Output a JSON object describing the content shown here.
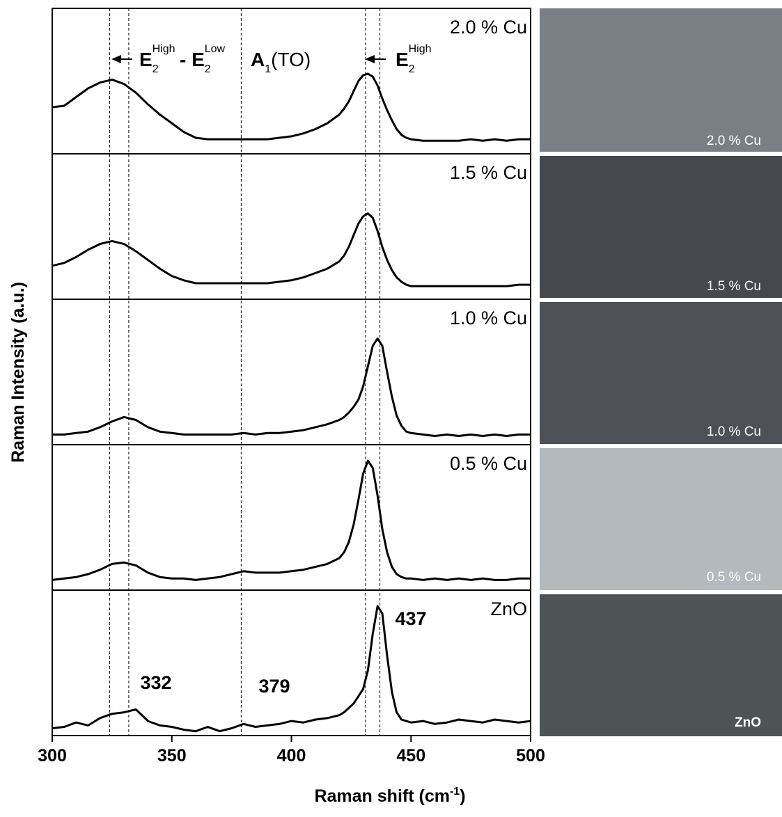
{
  "chart_data": {
    "type": "line",
    "ylabel": "Raman Intensity (a.u.)",
    "xlabel": {
      "text": "Raman shift (cm",
      "sup": "-1",
      "tail": ")"
    },
    "x": [
      300,
      305,
      310,
      315,
      320,
      325,
      330,
      335,
      340,
      345,
      350,
      355,
      360,
      365,
      370,
      375,
      380,
      385,
      390,
      395,
      400,
      405,
      410,
      415,
      420,
      422,
      424,
      426,
      428,
      430,
      432,
      434,
      436,
      438,
      440,
      442,
      444,
      446,
      448,
      450,
      455,
      460,
      465,
      470,
      475,
      480,
      485,
      490,
      495,
      500
    ],
    "xlim": [
      300,
      500
    ],
    "xticks": [
      300,
      350,
      400,
      450,
      500
    ],
    "ylim": [
      0,
      1
    ],
    "color": "#000000",
    "series": [
      {
        "name": "2.0 % Cu",
        "values": [
          0.32,
          0.33,
          0.39,
          0.45,
          0.49,
          0.51,
          0.48,
          0.42,
          0.34,
          0.27,
          0.21,
          0.15,
          0.11,
          0.1,
          0.1,
          0.1,
          0.1,
          0.1,
          0.1,
          0.11,
          0.12,
          0.14,
          0.17,
          0.21,
          0.27,
          0.31,
          0.36,
          0.43,
          0.5,
          0.54,
          0.55,
          0.53,
          0.47,
          0.38,
          0.3,
          0.23,
          0.17,
          0.13,
          0.11,
          0.1,
          0.09,
          0.09,
          0.09,
          0.09,
          0.1,
          0.09,
          0.1,
          0.09,
          0.1,
          0.1
        ]
      },
      {
        "name": "1.5 % Cu",
        "values": [
          0.23,
          0.25,
          0.29,
          0.34,
          0.38,
          0.4,
          0.38,
          0.33,
          0.27,
          0.21,
          0.16,
          0.13,
          0.11,
          0.11,
          0.11,
          0.11,
          0.11,
          0.11,
          0.11,
          0.12,
          0.13,
          0.15,
          0.18,
          0.21,
          0.26,
          0.3,
          0.36,
          0.44,
          0.52,
          0.57,
          0.59,
          0.56,
          0.47,
          0.36,
          0.27,
          0.2,
          0.15,
          0.12,
          0.1,
          0.09,
          0.09,
          0.09,
          0.09,
          0.09,
          0.09,
          0.09,
          0.09,
          0.09,
          0.1,
          0.1
        ]
      },
      {
        "name": "1.0 % Cu",
        "values": [
          0.07,
          0.07,
          0.08,
          0.09,
          0.12,
          0.16,
          0.19,
          0.17,
          0.12,
          0.09,
          0.08,
          0.07,
          0.07,
          0.07,
          0.07,
          0.07,
          0.08,
          0.07,
          0.08,
          0.08,
          0.09,
          0.1,
          0.12,
          0.14,
          0.17,
          0.19,
          0.22,
          0.26,
          0.31,
          0.4,
          0.54,
          0.68,
          0.73,
          0.68,
          0.5,
          0.33,
          0.2,
          0.13,
          0.09,
          0.08,
          0.07,
          0.06,
          0.07,
          0.06,
          0.07,
          0.06,
          0.07,
          0.06,
          0.07,
          0.07
        ]
      },
      {
        "name": "0.5 % Cu",
        "values": [
          0.07,
          0.08,
          0.09,
          0.11,
          0.14,
          0.18,
          0.19,
          0.17,
          0.12,
          0.09,
          0.08,
          0.08,
          0.07,
          0.08,
          0.09,
          0.11,
          0.13,
          0.12,
          0.12,
          0.12,
          0.13,
          0.14,
          0.16,
          0.18,
          0.22,
          0.26,
          0.33,
          0.45,
          0.62,
          0.8,
          0.89,
          0.84,
          0.65,
          0.42,
          0.26,
          0.16,
          0.11,
          0.09,
          0.08,
          0.08,
          0.07,
          0.08,
          0.07,
          0.08,
          0.07,
          0.08,
          0.07,
          0.07,
          0.08,
          0.08
        ]
      },
      {
        "name": "ZnO",
        "values": [
          0.05,
          0.06,
          0.09,
          0.07,
          0.12,
          0.15,
          0.16,
          0.18,
          0.1,
          0.07,
          0.06,
          0.04,
          0.03,
          0.06,
          0.03,
          0.05,
          0.08,
          0.06,
          0.07,
          0.08,
          0.1,
          0.09,
          0.11,
          0.12,
          0.14,
          0.16,
          0.19,
          0.22,
          0.27,
          0.32,
          0.45,
          0.7,
          0.89,
          0.84,
          0.55,
          0.3,
          0.16,
          0.11,
          0.1,
          0.09,
          0.1,
          0.08,
          0.09,
          0.11,
          0.1,
          0.09,
          0.11,
          0.1,
          0.09,
          0.1
        ]
      }
    ],
    "vlines": [
      324,
      332,
      379,
      431,
      437
    ],
    "annotations": [
      {
        "text": "E",
        "sub": "2",
        "sup": "High"
      },
      {
        "text": "- E",
        "sub": "2",
        "sup": "Low"
      },
      {
        "text": "A",
        "sub": "1",
        "tail": "(TO)"
      },
      {
        "text": "E",
        "sub": "2",
        "sup": "High"
      }
    ],
    "peak_labels": [
      332,
      379,
      437
    ]
  }
}
